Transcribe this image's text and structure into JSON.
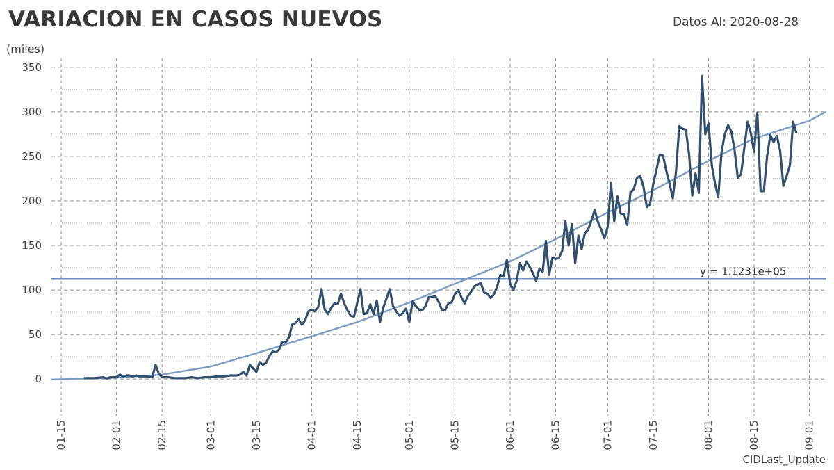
{
  "header": {
    "title": "VARIACION EN CASOS NUEVOS",
    "date_label": "Datos Al: 2020-08-28",
    "unit_label": "(miles)",
    "source_label": "CIDLast_Update"
  },
  "chart_data": {
    "type": "line",
    "title": "VARIACION EN CASOS NUEVOS",
    "xlabel": "",
    "ylabel": "(miles)",
    "xlim": [
      "2020-01-12",
      "2020-09-06"
    ],
    "ylim": [
      -35,
      360
    ],
    "x_ticks": [
      "01-15",
      "02-01",
      "02-15",
      "03-01",
      "03-15",
      "04-01",
      "04-15",
      "05-01",
      "05-15",
      "06-01",
      "06-15",
      "07-01",
      "07-15",
      "08-01",
      "08-15",
      "09-01"
    ],
    "x_tick_dates": [
      "2020-01-15",
      "2020-02-01",
      "2020-02-15",
      "2020-03-01",
      "2020-03-15",
      "2020-04-01",
      "2020-04-15",
      "2020-05-01",
      "2020-05-15",
      "2020-06-01",
      "2020-06-15",
      "2020-07-01",
      "2020-07-15",
      "2020-08-01",
      "2020-08-15",
      "2020-09-01"
    ],
    "y_ticks": [
      0,
      50,
      100,
      150,
      200,
      250,
      300,
      350
    ],
    "grid": true,
    "colors": {
      "series": "#34506f",
      "trend": "#7d9bc1",
      "mean": "#4a6aa0"
    },
    "series": [
      {
        "values": [
          [
            "2020-01-22",
            1
          ],
          [
            "2020-01-25",
            1
          ],
          [
            "2020-01-28",
            2
          ],
          [
            "2020-01-29",
            0.5
          ],
          [
            "2020-01-30",
            2
          ],
          [
            "2020-02-01",
            2
          ],
          [
            "2020-02-02",
            5
          ],
          [
            "2020-02-03",
            3
          ],
          [
            "2020-02-04",
            4
          ],
          [
            "2020-02-05",
            4
          ],
          [
            "2020-02-06",
            3
          ],
          [
            "2020-02-07",
            4
          ],
          [
            "2020-02-08",
            3
          ],
          [
            "2020-02-10",
            3
          ],
          [
            "2020-02-12",
            2
          ],
          [
            "2020-02-13",
            16
          ],
          [
            "2020-02-14",
            6
          ],
          [
            "2020-02-15",
            2
          ],
          [
            "2020-02-17",
            2
          ],
          [
            "2020-02-19",
            1
          ],
          [
            "2020-02-22",
            1
          ],
          [
            "2020-02-24",
            2
          ],
          [
            "2020-02-26",
            1
          ],
          [
            "2020-02-28",
            2
          ],
          [
            "2020-03-01",
            2
          ],
          [
            "2020-03-03",
            3
          ],
          [
            "2020-03-05",
            3
          ],
          [
            "2020-03-07",
            4
          ],
          [
            "2020-03-09",
            4
          ],
          [
            "2020-03-10",
            5
          ],
          [
            "2020-03-11",
            8
          ],
          [
            "2020-03-12",
            4
          ],
          [
            "2020-03-13",
            16
          ],
          [
            "2020-03-14",
            12
          ],
          [
            "2020-03-15",
            8
          ],
          [
            "2020-03-16",
            19
          ],
          [
            "2020-03-17",
            16
          ],
          [
            "2020-03-18",
            18
          ],
          [
            "2020-03-19",
            26
          ],
          [
            "2020-03-20",
            31
          ],
          [
            "2020-03-21",
            30
          ],
          [
            "2020-03-22",
            33
          ],
          [
            "2020-03-23",
            42
          ],
          [
            "2020-03-24",
            41
          ],
          [
            "2020-03-25",
            47
          ],
          [
            "2020-03-26",
            61
          ],
          [
            "2020-03-27",
            63
          ],
          [
            "2020-03-28",
            67
          ],
          [
            "2020-03-29",
            61
          ],
          [
            "2020-03-30",
            66
          ],
          [
            "2020-03-31",
            76
          ],
          [
            "2020-04-01",
            78
          ],
          [
            "2020-04-02",
            76
          ],
          [
            "2020-04-03",
            81
          ],
          [
            "2020-04-04",
            101
          ],
          [
            "2020-04-05",
            78
          ],
          [
            "2020-04-06",
            73
          ],
          [
            "2020-04-07",
            80
          ],
          [
            "2020-04-08",
            85
          ],
          [
            "2020-04-09",
            84
          ],
          [
            "2020-04-10",
            96
          ],
          [
            "2020-04-11",
            85
          ],
          [
            "2020-04-12",
            77
          ],
          [
            "2020-04-13",
            71
          ],
          [
            "2020-04-14",
            70
          ],
          [
            "2020-04-16",
            101
          ],
          [
            "2020-04-17",
            73
          ],
          [
            "2020-04-18",
            74
          ],
          [
            "2020-04-19",
            84
          ],
          [
            "2020-04-20",
            73
          ],
          [
            "2020-04-21",
            88
          ],
          [
            "2020-04-22",
            64
          ],
          [
            "2020-04-23",
            80
          ],
          [
            "2020-04-25",
            101
          ],
          [
            "2020-04-26",
            82
          ],
          [
            "2020-04-27",
            76
          ],
          [
            "2020-04-28",
            71
          ],
          [
            "2020-04-29",
            74
          ],
          [
            "2020-04-30",
            79
          ],
          [
            "2020-05-01",
            64
          ],
          [
            "2020-05-02",
            87
          ],
          [
            "2020-05-03",
            82
          ],
          [
            "2020-05-04",
            78
          ],
          [
            "2020-05-05",
            77
          ],
          [
            "2020-05-06",
            82
          ],
          [
            "2020-05-07",
            92
          ],
          [
            "2020-05-08",
            92
          ],
          [
            "2020-05-09",
            93
          ],
          [
            "2020-05-10",
            87
          ],
          [
            "2020-05-11",
            78
          ],
          [
            "2020-05-12",
            77
          ],
          [
            "2020-05-13",
            85
          ],
          [
            "2020-05-14",
            86
          ],
          [
            "2020-05-15",
            95
          ],
          [
            "2020-05-16",
            100
          ],
          [
            "2020-05-17",
            92
          ],
          [
            "2020-05-18",
            85
          ],
          [
            "2020-05-19",
            93
          ],
          [
            "2020-05-20",
            98
          ],
          [
            "2020-05-21",
            104
          ],
          [
            "2020-05-22",
            106
          ],
          [
            "2020-05-23",
            108
          ],
          [
            "2020-05-24",
            97
          ],
          [
            "2020-05-25",
            96
          ],
          [
            "2020-05-26",
            91
          ],
          [
            "2020-05-27",
            95
          ],
          [
            "2020-05-28",
            104
          ],
          [
            "2020-05-29",
            117
          ],
          [
            "2020-05-30",
            115
          ],
          [
            "2020-05-31",
            134
          ],
          [
            "2020-06-01",
            107
          ],
          [
            "2020-06-02",
            100
          ],
          [
            "2020-06-03",
            110
          ],
          [
            "2020-06-04",
            130
          ],
          [
            "2020-06-05",
            122
          ],
          [
            "2020-06-06",
            132
          ],
          [
            "2020-06-07",
            126
          ],
          [
            "2020-06-08",
            119
          ],
          [
            "2020-06-09",
            110
          ],
          [
            "2020-06-10",
            124
          ],
          [
            "2020-06-11",
            120
          ],
          [
            "2020-06-12",
            155
          ],
          [
            "2020-06-13",
            117
          ],
          [
            "2020-06-14",
            136
          ],
          [
            "2020-06-15",
            135
          ],
          [
            "2020-06-16",
            136
          ],
          [
            "2020-06-17",
            144
          ],
          [
            "2020-06-18",
            177
          ],
          [
            "2020-06-19",
            150
          ],
          [
            "2020-06-20",
            174
          ],
          [
            "2020-06-21",
            130
          ],
          [
            "2020-06-22",
            161
          ],
          [
            "2020-06-23",
            146
          ],
          [
            "2020-06-24",
            164
          ],
          [
            "2020-06-25",
            168
          ],
          [
            "2020-06-26",
            178
          ],
          [
            "2020-06-27",
            190
          ],
          [
            "2020-06-28",
            176
          ],
          [
            "2020-06-29",
            168
          ],
          [
            "2020-06-30",
            158
          ],
          [
            "2020-07-01",
            171
          ],
          [
            "2020-07-02",
            220
          ],
          [
            "2020-07-03",
            177
          ],
          [
            "2020-07-04",
            205
          ],
          [
            "2020-07-05",
            186
          ],
          [
            "2020-07-06",
            185
          ],
          [
            "2020-07-07",
            173
          ],
          [
            "2020-07-08",
            210
          ],
          [
            "2020-07-09",
            213
          ],
          [
            "2020-07-10",
            226
          ],
          [
            "2020-07-11",
            228
          ],
          [
            "2020-07-12",
            216
          ],
          [
            "2020-07-13",
            193
          ],
          [
            "2020-07-14",
            196
          ],
          [
            "2020-07-15",
            219
          ],
          [
            "2020-07-16",
            235
          ],
          [
            "2020-07-17",
            252
          ],
          [
            "2020-07-18",
            251
          ],
          [
            "2020-07-19",
            234
          ],
          [
            "2020-07-20",
            220
          ],
          [
            "2020-07-21",
            203
          ],
          [
            "2020-07-22",
            233
          ],
          [
            "2020-07-23",
            284
          ],
          [
            "2020-07-24",
            281
          ],
          [
            "2020-07-25",
            280
          ],
          [
            "2020-07-26",
            253
          ],
          [
            "2020-07-27",
            206
          ],
          [
            "2020-07-28",
            231
          ],
          [
            "2020-07-29",
            209
          ],
          [
            "2020-07-30",
            340
          ],
          [
            "2020-07-31",
            275
          ],
          [
            "2020-08-01",
            287
          ],
          [
            "2020-08-02",
            240
          ],
          [
            "2020-08-03",
            219
          ],
          [
            "2020-08-04",
            204
          ],
          [
            "2020-08-05",
            255
          ],
          [
            "2020-08-06",
            275
          ],
          [
            "2020-08-07",
            285
          ],
          [
            "2020-08-08",
            278
          ],
          [
            "2020-08-09",
            257
          ],
          [
            "2020-08-10",
            226
          ],
          [
            "2020-08-11",
            230
          ],
          [
            "2020-08-12",
            260
          ],
          [
            "2020-08-13",
            289
          ],
          [
            "2020-08-14",
            276
          ],
          [
            "2020-08-15",
            255
          ],
          [
            "2020-08-16",
            299
          ],
          [
            "2020-08-17",
            211
          ],
          [
            "2020-08-18",
            211
          ],
          [
            "2020-08-19",
            250
          ],
          [
            "2020-08-20",
            274
          ],
          [
            "2020-08-21",
            266
          ],
          [
            "2020-08-22",
            273
          ],
          [
            "2020-08-23",
            256
          ],
          [
            "2020-08-24",
            217
          ],
          [
            "2020-08-25",
            228
          ],
          [
            "2020-08-26",
            240
          ],
          [
            "2020-08-27",
            289
          ],
          [
            "2020-08-28",
            276
          ]
        ]
      },
      {
        "values": [
          [
            "2020-01-12",
            -0.5
          ],
          [
            "2020-02-01",
            1.5
          ],
          [
            "2020-02-15",
            5
          ],
          [
            "2020-03-01",
            14
          ],
          [
            "2020-03-15",
            29
          ],
          [
            "2020-04-01",
            48
          ],
          [
            "2020-04-15",
            64
          ],
          [
            "2020-05-01",
            86
          ],
          [
            "2020-05-15",
            107
          ],
          [
            "2020-06-01",
            132
          ],
          [
            "2020-06-15",
            157
          ],
          [
            "2020-07-01",
            187
          ],
          [
            "2020-07-15",
            212
          ],
          [
            "2020-08-01",
            245
          ],
          [
            "2020-08-15",
            270
          ],
          [
            "2020-09-01",
            290
          ],
          [
            "2020-09-06",
            300
          ]
        ]
      }
    ],
    "mean_line": {
      "value": 112.31,
      "label": "y = 1.1231e+05"
    }
  }
}
